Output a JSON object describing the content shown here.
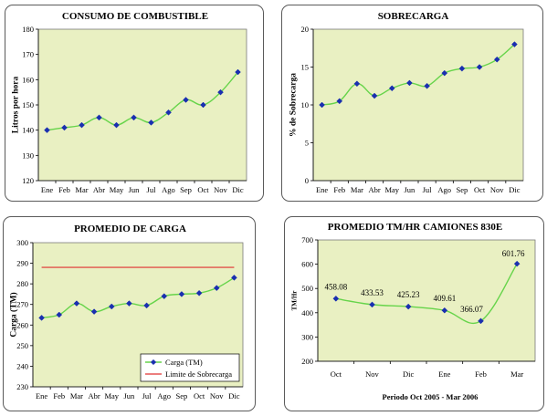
{
  "chart_data": [
    {
      "type": "line",
      "title": "CONSUMO DE COMBUSTIBLE",
      "xlabel": "",
      "ylabel": "Litros por hora",
      "categories": [
        "Ene",
        "Feb",
        "Mar",
        "Abr",
        "May",
        "Jun",
        "Jul",
        "Ago",
        "Sep",
        "Oct",
        "Nov",
        "Dic"
      ],
      "series": [
        {
          "values": [
            140,
            141,
            142,
            145,
            142,
            145,
            143,
            147,
            152,
            150,
            155,
            163
          ]
        }
      ],
      "ylim": [
        120,
        180
      ],
      "yticks": [
        120,
        130,
        140,
        150,
        160,
        170,
        180
      ],
      "grid": false,
      "colors": {
        "plot_bg": "#e9f0c2",
        "line": "#66d44a",
        "marker": "#1a2fb0",
        "axis": "#000000"
      }
    },
    {
      "type": "line",
      "title": "SOBRECARGA",
      "xlabel": "",
      "ylabel": "% de Sobrecarga",
      "categories": [
        "Ene",
        "Feb",
        "Mar",
        "Abr",
        "May",
        "Jun",
        "Jul",
        "Ago",
        "Sep",
        "Oct",
        "Nov",
        "Dic"
      ],
      "series": [
        {
          "values": [
            10,
            10.5,
            12.8,
            11.2,
            12.2,
            12.9,
            12.5,
            14.2,
            14.8,
            15.0,
            16.0,
            18.0
          ]
        }
      ],
      "ylim": [
        0,
        20
      ],
      "yticks": [
        0,
        5,
        10,
        15,
        20
      ],
      "grid": false,
      "colors": {
        "plot_bg": "#e9f0c2",
        "line": "#66d44a",
        "marker": "#1a2fb0",
        "axis": "#000000"
      }
    },
    {
      "type": "line",
      "title": "PROMEDIO DE CARGA",
      "xlabel": "",
      "ylabel": "Carga (TM)",
      "categories": [
        "Ene",
        "Feb",
        "Mar",
        "Abr",
        "May",
        "Jun",
        "Jul",
        "Ago",
        "Sep",
        "Oct",
        "Nov",
        "Dic"
      ],
      "series": [
        {
          "name": "Carga (TM)",
          "values": [
            263.5,
            265,
            270.5,
            266.5,
            269,
            270.5,
            269.5,
            274,
            275,
            275.5,
            278,
            283
          ]
        },
        {
          "name": "Limite de Sobrecarga",
          "values": [
            288,
            288,
            288,
            288,
            288,
            288,
            288,
            288,
            288,
            288,
            288,
            288
          ]
        }
      ],
      "ylim": [
        230,
        300
      ],
      "yticks": [
        230,
        240,
        250,
        260,
        270,
        280,
        290,
        300
      ],
      "legend": "bottom-right",
      "grid": false,
      "colors": {
        "plot_bg": "#e9f0c2",
        "line": "#66d44a",
        "marker": "#1a2fb0",
        "limit": "#e03030",
        "axis": "#000000"
      }
    },
    {
      "type": "line",
      "title": "PROMEDIO TM/HR CAMIONES 830E",
      "xlabel": "Periodo Oct 2005 - Mar 2006",
      "ylabel": "TM/Hr",
      "categories": [
        "Oct",
        "Nov",
        "Dic",
        "Ene",
        "Feb",
        "Mar"
      ],
      "series": [
        {
          "values": [
            458.08,
            433.53,
            425.23,
            409.61,
            366.07,
            601.76
          ]
        }
      ],
      "data_labels": [
        "458.08",
        "433.53",
        "425.23",
        "409.61",
        "366.07",
        "601.76"
      ],
      "ylim": [
        200,
        700
      ],
      "yticks": [
        200,
        300,
        400,
        500,
        600,
        700
      ],
      "grid": false,
      "colors": {
        "plot_bg": "#e9f0c2",
        "line": "#66d44a",
        "marker": "#1a2fb0",
        "axis": "#000000"
      }
    }
  ]
}
